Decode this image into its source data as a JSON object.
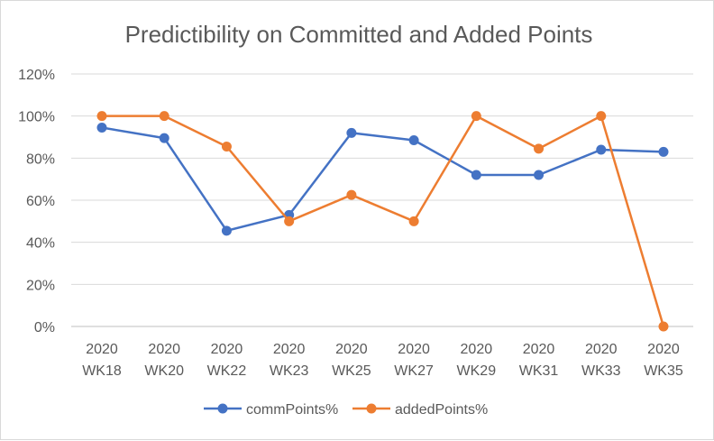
{
  "chart_data": {
    "type": "line",
    "title": "Predictibility on Committed and Added Points",
    "categories": [
      [
        "2020",
        "WK18"
      ],
      [
        "2020",
        "WK20"
      ],
      [
        "2020",
        "WK22"
      ],
      [
        "2020",
        "WK23"
      ],
      [
        "2020",
        "WK25"
      ],
      [
        "2020",
        "WK27"
      ],
      [
        "2020",
        "WK29"
      ],
      [
        "2020",
        "WK31"
      ],
      [
        "2020",
        "WK33"
      ],
      [
        "2020",
        "WK35"
      ]
    ],
    "series": [
      {
        "name": "commPoints%",
        "color": "#4472C4",
        "values": [
          94.5,
          89.5,
          45.5,
          53,
          92,
          88.5,
          72,
          72,
          84,
          83
        ]
      },
      {
        "name": "addedPoints%",
        "color": "#ED7D31",
        "values": [
          100,
          100,
          85.5,
          50,
          62.5,
          50,
          100,
          84.5,
          100,
          0
        ]
      }
    ],
    "ylim": [
      0,
      120
    ],
    "yticks": [
      "0%",
      "20%",
      "40%",
      "60%",
      "80%",
      "100%",
      "120%"
    ],
    "grid": true,
    "legend_position": "bottom"
  }
}
